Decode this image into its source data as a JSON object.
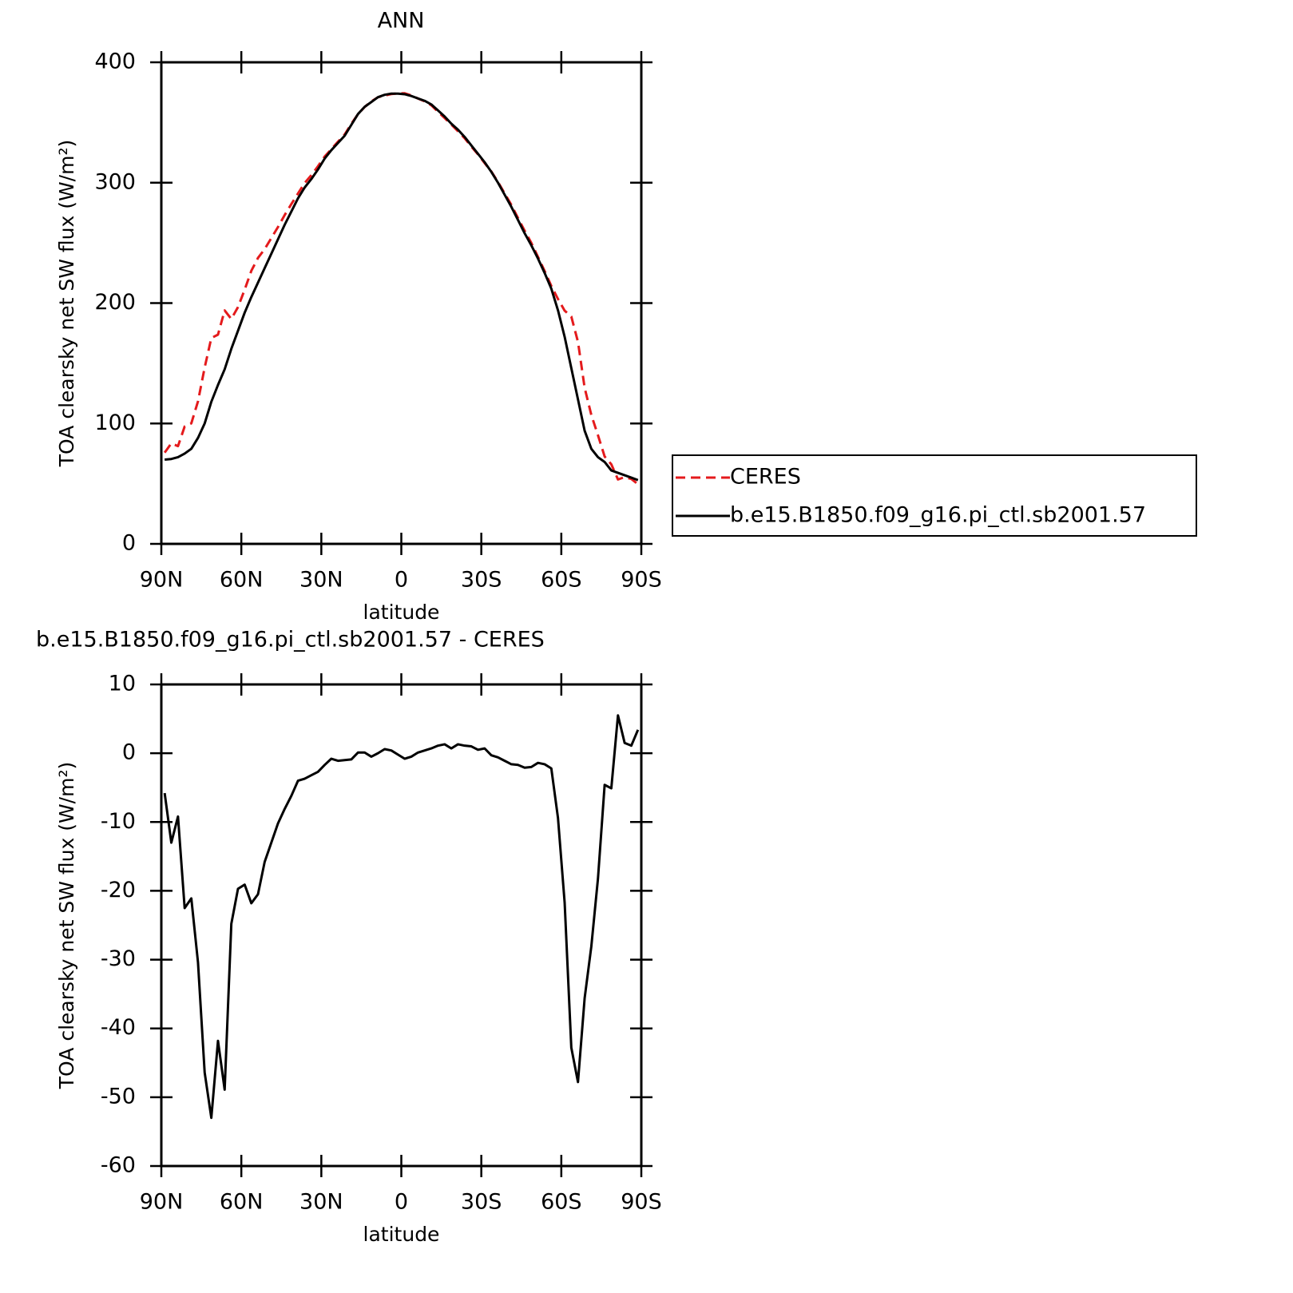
{
  "chart_data": [
    {
      "type": "line",
      "title": "ANN",
      "xlabel": "latitude",
      "ylabel": "TOA clearsky net SW flux (W/m²)",
      "x": [
        88.75,
        86.25,
        83.75,
        81.25,
        78.75,
        76.25,
        73.75,
        71.25,
        68.75,
        66.25,
        63.75,
        61.25,
        58.75,
        56.25,
        53.75,
        51.25,
        48.75,
        46.25,
        43.75,
        41.25,
        38.75,
        36.25,
        33.75,
        31.25,
        28.75,
        26.25,
        23.75,
        21.25,
        18.75,
        16.25,
        13.75,
        11.25,
        8.75,
        6.25,
        3.75,
        1.25,
        -1.25,
        -3.75,
        -6.25,
        -8.75,
        -11.25,
        -13.75,
        -16.25,
        -18.75,
        -21.25,
        -23.75,
        -26.25,
        -28.75,
        -31.25,
        -33.75,
        -36.25,
        -38.75,
        -41.25,
        -43.75,
        -46.25,
        -48.75,
        -51.25,
        -53.75,
        -56.25,
        -58.75,
        -61.25,
        -63.75,
        -66.25,
        -68.75,
        -71.25,
        -73.75,
        -76.25,
        -78.75,
        -81.25,
        -83.75,
        -86.25,
        -88.75
      ],
      "series": [
        {
          "name": "CERES",
          "color": "#e41a1c",
          "line_style": "dashed",
          "values": [
            75.8,
            83.5,
            81.2,
            97.5,
            100.1,
            118.4,
            146.4,
            171,
            173.8,
            193.9,
            186.8,
            196.7,
            211.1,
            226.8,
            237.5,
            244.8,
            254,
            263.2,
            273.1,
            282.2,
            291,
            299.7,
            306.2,
            313.7,
            321.7,
            327.8,
            334.1,
            340,
            348.9,
            356.9,
            362.9,
            367.5,
            371,
            372.4,
            373.6,
            374.2,
            374.3,
            372.5,
            369.9,
            367.6,
            364.3,
            358.9,
            353.7,
            348.3,
            342.7,
            336.9,
            330,
            323.5,
            316.3,
            309.3,
            300.6,
            291.1,
            281.6,
            270.7,
            260.1,
            250,
            238.4,
            226.6,
            214.2,
            203.4,
            193.7,
            188.8,
            167.8,
            129.6,
            107.1,
            90.2,
            72.6,
            66.1,
            53.5,
            55.5,
            53.9,
            49.6
          ]
        },
        {
          "name": "b.e15.B1850.f09_g16.pi_ctl.sb2001.57",
          "color": "#000000",
          "line_style": "solid",
          "values": [
            70,
            70.5,
            72,
            75,
            79,
            88,
            100,
            118,
            132,
            145,
            162,
            177,
            192,
            205,
            217,
            229,
            241,
            253,
            265,
            276,
            287,
            296,
            303,
            311,
            320,
            327,
            333,
            339,
            348,
            357,
            363,
            367,
            371,
            373,
            374,
            374,
            373.5,
            372,
            370,
            368,
            365,
            360,
            355,
            349,
            344,
            338,
            331,
            324,
            317,
            309,
            300,
            290,
            280,
            269,
            258,
            248,
            237,
            225,
            212,
            194,
            172,
            146,
            120,
            94,
            79,
            72,
            68,
            61,
            59,
            57,
            55,
            53
          ]
        }
      ],
      "xlim": [
        90,
        -90
      ],
      "xticks": [
        {
          "value": 90,
          "label": "90N"
        },
        {
          "value": 60,
          "label": "60N"
        },
        {
          "value": 30,
          "label": "30N"
        },
        0,
        {
          "value": -30,
          "label": "30S"
        },
        {
          "value": -60,
          "label": "60S"
        },
        {
          "value": -90,
          "label": "90S"
        }
      ],
      "ylim": [
        0,
        400
      ],
      "yticks": [
        0,
        100,
        200,
        300,
        400
      ],
      "legend": "right"
    },
    {
      "type": "line",
      "title": "b.e15.B1850.f09_g16.pi_ctl.sb2001.57 - CERES",
      "xlabel": "latitude",
      "ylabel": "TOA clearsky net SW flux (W/m²)",
      "x": [
        88.75,
        86.25,
        83.75,
        81.25,
        78.75,
        76.25,
        73.75,
        71.25,
        68.75,
        66.25,
        63.75,
        61.25,
        58.75,
        56.25,
        53.75,
        51.25,
        48.75,
        46.25,
        43.75,
        41.25,
        38.75,
        36.25,
        33.75,
        31.25,
        28.75,
        26.25,
        23.75,
        21.25,
        18.75,
        16.25,
        13.75,
        11.25,
        8.75,
        6.25,
        3.75,
        1.25,
        -1.25,
        -3.75,
        -6.25,
        -8.75,
        -11.25,
        -13.75,
        -16.25,
        -18.75,
        -21.25,
        -23.75,
        -26.25,
        -28.75,
        -31.25,
        -33.75,
        -36.25,
        -38.75,
        -41.25,
        -43.75,
        -46.25,
        -48.75,
        -51.25,
        -53.75,
        -56.25,
        -58.75,
        -61.25,
        -63.75,
        -66.25,
        -68.75,
        -71.25,
        -73.75,
        -76.25,
        -78.75,
        -81.25,
        -83.75,
        -86.25,
        -88.75
      ],
      "series": [
        {
          "color": "#000000",
          "line_style": "solid",
          "values": [
            -5.8,
            -13,
            -9.2,
            -22.5,
            -21.1,
            -30.4,
            -46.4,
            -53,
            -41.8,
            -48.9,
            -24.8,
            -19.7,
            -19.1,
            -21.8,
            -20.5,
            -15.8,
            -13,
            -10.2,
            -8.1,
            -6.2,
            -4,
            -3.7,
            -3.2,
            -2.7,
            -1.7,
            -0.8,
            -1.1,
            -1,
            -0.9,
            0.1,
            0.1,
            -0.5,
            0,
            0.6,
            0.4,
            -0.2,
            -0.8,
            -0.5,
            0.1,
            0.4,
            0.7,
            1.1,
            1.3,
            0.7,
            1.3,
            1.1,
            1,
            0.5,
            0.7,
            -0.3,
            -0.6,
            -1.1,
            -1.6,
            -1.7,
            -2.1,
            -2,
            -1.4,
            -1.6,
            -2.2,
            -9.4,
            -21.7,
            -42.8,
            -47.8,
            -35.6,
            -28.1,
            -18.2,
            -4.6,
            -5.1,
            5.5,
            1.5,
            1.1,
            3.4
          ]
        }
      ],
      "xlim": [
        90,
        -90
      ],
      "xticks": [
        {
          "value": 90,
          "label": "90N"
        },
        {
          "value": 60,
          "label": "60N"
        },
        {
          "value": 30,
          "label": "30N"
        },
        0,
        {
          "value": -30,
          "label": "30S"
        },
        {
          "value": -60,
          "label": "60S"
        },
        {
          "value": -90,
          "label": "90S"
        }
      ],
      "ylim": [
        -60,
        10
      ],
      "yticks": [
        -60,
        -50,
        -40,
        -30,
        -20,
        -10,
        0,
        10
      ]
    }
  ]
}
